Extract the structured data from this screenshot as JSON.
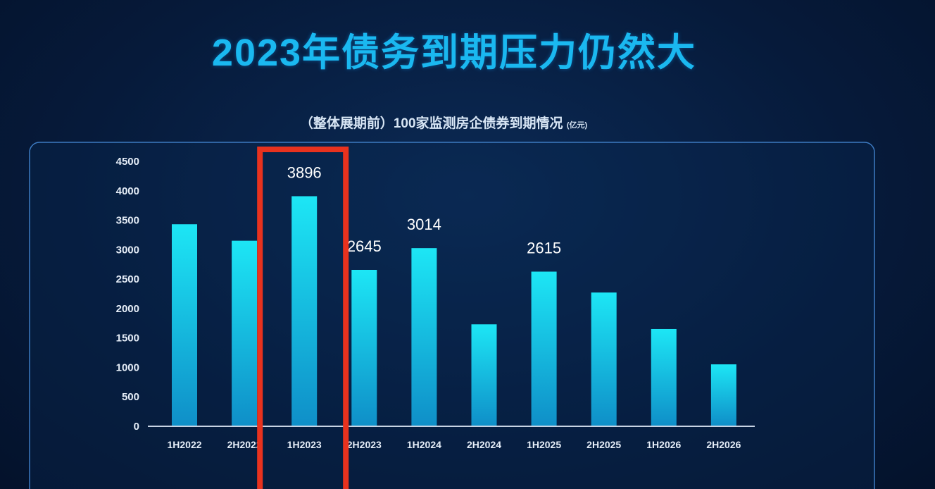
{
  "title": "2023年债务到期压力仍然大",
  "subtitle": "（整体展期前）100家监测房企债券到期情况",
  "unit": "(亿元)",
  "colors": {
    "bar_top": "#1de6f5",
    "bar_bottom": "#0f8fc8",
    "highlight": "#e8321e",
    "panel_border": "#3d7bc2"
  },
  "chart_data": {
    "type": "bar",
    "title": "（整体展期前）100家监测房企债券到期情况",
    "ylabel": "(亿元)",
    "categories": [
      "1H2022",
      "2H2022",
      "1H2023",
      "2H2023",
      "1H2024",
      "2H2024",
      "1H2025",
      "2H2025",
      "1H2026",
      "2H2026"
    ],
    "values": [
      3420,
      3140,
      3896,
      2645,
      3014,
      1720,
      2615,
      2260,
      1640,
      1040
    ],
    "data_labels": {
      "2": "3896",
      "3": "2645",
      "4": "3014",
      "6": "2615"
    },
    "yticks": [
      0,
      500,
      1000,
      1500,
      2000,
      2500,
      3000,
      3500,
      4000,
      4500
    ],
    "ylim": [
      0,
      4500
    ],
    "grid": false,
    "highlight_category": "1H2023"
  }
}
